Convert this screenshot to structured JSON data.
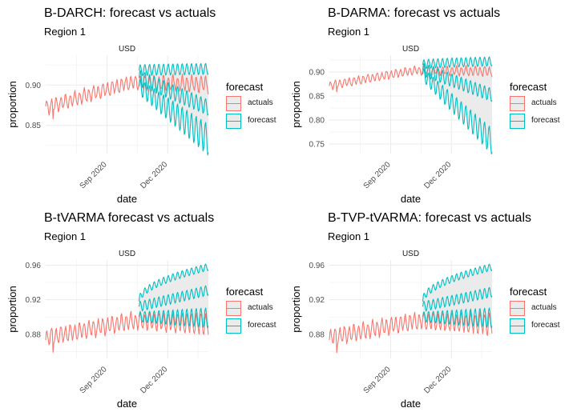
{
  "colors": {
    "actuals": "#F8766D",
    "forecast": "#00BFC4",
    "ribbon": "#ebebeb",
    "grid": "#ebebeb"
  },
  "legend": {
    "title": "forecast",
    "entries": [
      "actuals",
      "forecast"
    ]
  },
  "panels": [
    {
      "title": "B-DARCH: forecast vs actuals",
      "subtitle": "Region 1",
      "facet": "USD"
    },
    {
      "title": "B-DARMA: forecast vs actuals",
      "subtitle": "Region 1",
      "facet": "USD"
    },
    {
      "title": "B-tVARMA forecast vs actuals",
      "subtitle": "Region 1",
      "facet": "USD"
    },
    {
      "title": "B-TVP-tVARMA: forecast vs actuals",
      "subtitle": "Region 1",
      "facet": "USD"
    }
  ],
  "chart_data": [
    {
      "type": "line",
      "title": "B-DARCH: forecast vs actuals",
      "subtitle": "Region 1",
      "facet": "USD",
      "xlabel": "date",
      "ylabel": "proportion",
      "x_ticks": [
        "Sep 2020",
        "Dec 2020"
      ],
      "y_ticks": [
        0.85,
        0.9
      ],
      "ylim": [
        0.815,
        0.937
      ],
      "x_range": [
        "2020-06-01",
        "2021-01-31"
      ],
      "forecast_start": "2020-10-19",
      "actuals": {
        "base_start": 0.872,
        "base_end": 0.903,
        "plateau_from": "2020-10-05",
        "weekly_amp": 0.008,
        "late_dip": 0.006
      },
      "forecast": {
        "median_start": 0.909,
        "median_end": 0.872,
        "upper_start": 0.918,
        "upper_end": 0.92,
        "lower_start": 0.898,
        "lower_end": 0.832,
        "weekly_amp": 0.01
      }
    },
    {
      "type": "line",
      "title": "B-DARMA: forecast vs actuals",
      "subtitle": "Region 1",
      "facet": "USD",
      "xlabel": "date",
      "ylabel": "proportion",
      "x_ticks": [
        "Sep 2020",
        "Dec 2020"
      ],
      "y_ticks": [
        0.75,
        0.8,
        0.85,
        0.9
      ],
      "ylim": [
        0.73,
        0.935
      ],
      "x_range": [
        "2020-06-01",
        "2021-01-31"
      ],
      "forecast_start": "2020-10-19",
      "actuals": {
        "base_start": 0.872,
        "base_end": 0.903,
        "plateau_from": "2020-10-05",
        "weekly_amp": 0.008,
        "late_dip": 0.006
      },
      "forecast": {
        "median_start": 0.905,
        "median_end": 0.852,
        "upper_start": 0.915,
        "upper_end": 0.922,
        "lower_start": 0.895,
        "lower_end": 0.755,
        "weekly_amp": 0.014
      }
    },
    {
      "type": "line",
      "title": "B-tVARMA forecast vs actuals",
      "subtitle": "Region 1",
      "facet": "USD",
      "xlabel": "date",
      "ylabel": "proportion",
      "x_ticks": [
        "Sep 2020",
        "Dec 2020"
      ],
      "y_ticks": [
        0.88,
        0.92,
        0.96
      ],
      "ylim": [
        0.852,
        0.966
      ],
      "x_range": [
        "2020-06-01",
        "2021-01-31"
      ],
      "forecast_start": "2020-10-19",
      "actuals": {
        "base_start": 0.876,
        "base_end": 0.895,
        "plateau_from": "2020-10-05",
        "weekly_amp": 0.009,
        "late_dip": 0.01
      },
      "forecast": {
        "median_start": 0.912,
        "median_end": 0.931,
        "upper_start": 0.918,
        "upper_end": 0.958,
        "lower_start": 0.9,
        "lower_end": 0.899,
        "weekly_amp": 0.006
      }
    },
    {
      "type": "line",
      "title": "B-TVP-tVARMA: forecast vs actuals",
      "subtitle": "Region 1",
      "facet": "USD",
      "xlabel": "date",
      "ylabel": "proportion",
      "x_ticks": [
        "Sep 2020",
        "Dec 2020"
      ],
      "y_ticks": [
        0.88,
        0.92,
        0.96
      ],
      "ylim": [
        0.852,
        0.966
      ],
      "x_range": [
        "2020-06-01",
        "2021-01-31"
      ],
      "forecast_start": "2020-10-19",
      "actuals": {
        "base_start": 0.876,
        "base_end": 0.895,
        "plateau_from": "2020-10-05",
        "weekly_amp": 0.009,
        "late_dip": 0.01
      },
      "forecast": {
        "median_start": 0.912,
        "median_end": 0.929,
        "upper_start": 0.918,
        "upper_end": 0.958,
        "lower_start": 0.9,
        "lower_end": 0.899,
        "weekly_amp": 0.006
      }
    }
  ]
}
